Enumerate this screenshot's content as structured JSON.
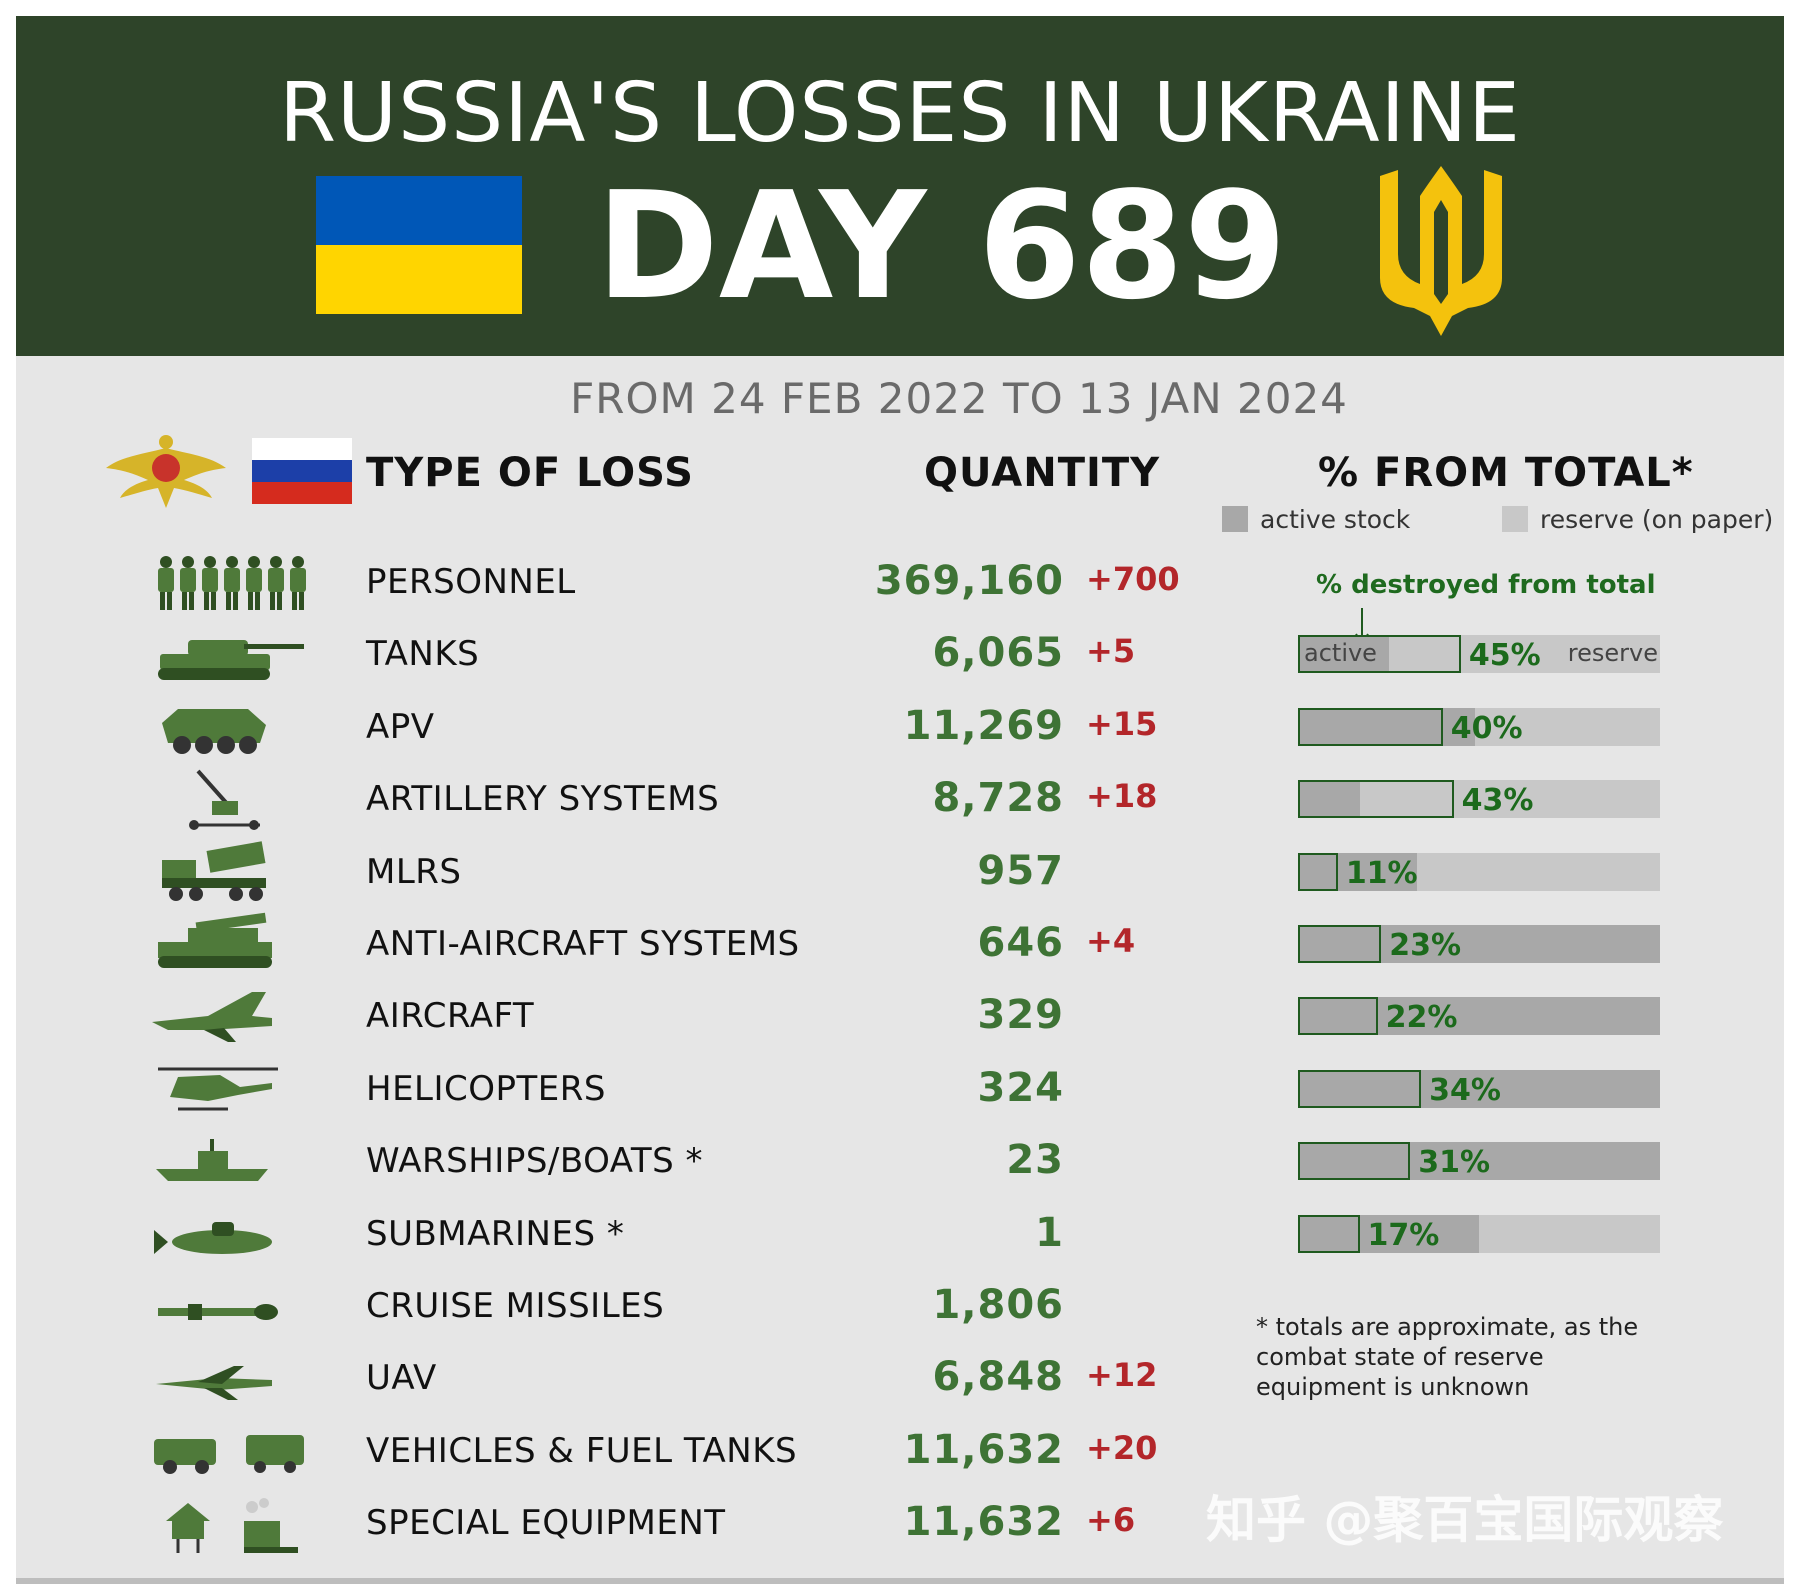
{
  "header": {
    "title": "RUSSIA'S LOSSES IN UKRAINE",
    "day_label": "DAY 689",
    "period": "FROM 24 FEB 2022 TO 13 JAN 2024"
  },
  "colors": {
    "banner": "#2e4429",
    "panel": "#e6e6e6",
    "ua_blue": "#0057b7",
    "ua_yellow": "#ffd500",
    "quantity_green": "#3e7335",
    "delta_red": "#b3262a",
    "percent_green": "#1c6a1c",
    "active_stock": "#a8a8a8",
    "reserve": "#c8c8c8"
  },
  "columns": {
    "type": "TYPE OF LOSS",
    "quantity": "QUANTITY",
    "percent": "% FROM TOTAL*"
  },
  "legend": {
    "active": "active stock",
    "reserve": "reserve (on paper)"
  },
  "bar_note": "% destroyed from total",
  "bar_inline_labels": {
    "active": "active",
    "reserve": "reserve"
  },
  "footnote": "* totals are approximate, as the combat state of reserve equipment is unknown",
  "watermark": "知乎 @聚百宝国际观察",
  "chart_data": {
    "type": "table",
    "rows": [
      {
        "icon": "soldiers-icon",
        "label": "PERSONNEL",
        "quantity": "369,160",
        "delta": "+700"
      },
      {
        "icon": "tank-icon",
        "label": "TANKS",
        "quantity": "6,065",
        "delta": "+5",
        "percent": "45%",
        "percent_value": 45,
        "active_share": 25
      },
      {
        "icon": "apv-icon",
        "label": "APV",
        "quantity": "11,269",
        "delta": "+15",
        "percent": "40%",
        "percent_value": 40,
        "active_share": 49
      },
      {
        "icon": "artillery-icon",
        "label": "ARTILLERY SYSTEMS",
        "quantity": "8,728",
        "delta": "+18",
        "percent": "43%",
        "percent_value": 43,
        "active_share": 17
      },
      {
        "icon": "mlrs-icon",
        "label": "MLRS",
        "quantity": "957",
        "delta": "",
        "percent": "11%",
        "percent_value": 11,
        "active_share": 33
      },
      {
        "icon": "anti-aircraft-icon",
        "label": "ANTI-AIRCRAFT SYSTEMS",
        "quantity": "646",
        "delta": "+4",
        "percent": "23%",
        "percent_value": 23,
        "active_share": 100
      },
      {
        "icon": "aircraft-icon",
        "label": "AIRCRAFT",
        "quantity": "329",
        "delta": "",
        "percent": "22%",
        "percent_value": 22,
        "active_share": 100
      },
      {
        "icon": "helicopter-icon",
        "label": "HELICOPTERS",
        "quantity": "324",
        "delta": "",
        "percent": "34%",
        "percent_value": 34,
        "active_share": 100
      },
      {
        "icon": "warship-icon",
        "label": "WARSHIPS/BOATS *",
        "quantity": "23",
        "delta": "",
        "percent": "31%",
        "percent_value": 31,
        "active_share": 100
      },
      {
        "icon": "submarine-icon",
        "label": "SUBMARINES *",
        "quantity": "1",
        "delta": "",
        "percent": "17%",
        "percent_value": 17,
        "active_share": 50
      },
      {
        "icon": "cruise-missile-icon",
        "label": "CRUISE MISSILES",
        "quantity": "1,806",
        "delta": ""
      },
      {
        "icon": "uav-icon",
        "label": "UAV",
        "quantity": "6,848",
        "delta": "+12"
      },
      {
        "icon": "vehicles-icon",
        "label": "VEHICLES & FUEL TANKS",
        "quantity": "11,632",
        "delta": "+20"
      },
      {
        "icon": "special-equipment-icon",
        "label": "SPECIAL EQUIPMENT",
        "quantity": "11,632",
        "delta": "+6"
      }
    ]
  }
}
